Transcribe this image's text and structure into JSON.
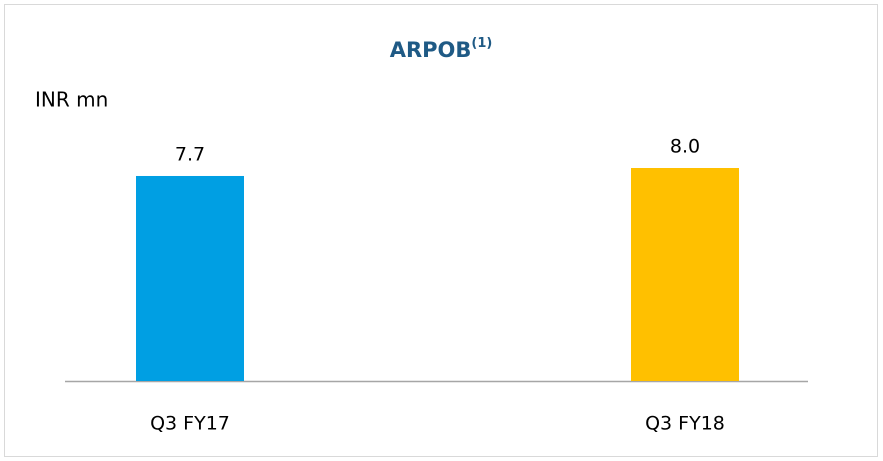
{
  "chart_data": {
    "type": "bar",
    "title": "ARPOB",
    "title_superscript": "(1)",
    "unit_label": "INR mn",
    "categories": [
      "Q3 FY17",
      "Q3 FY18"
    ],
    "values": [
      7.7,
      8.0
    ],
    "value_labels": [
      "7.7",
      "8.0"
    ],
    "colors": [
      "#009fe3",
      "#ffc000"
    ]
  }
}
